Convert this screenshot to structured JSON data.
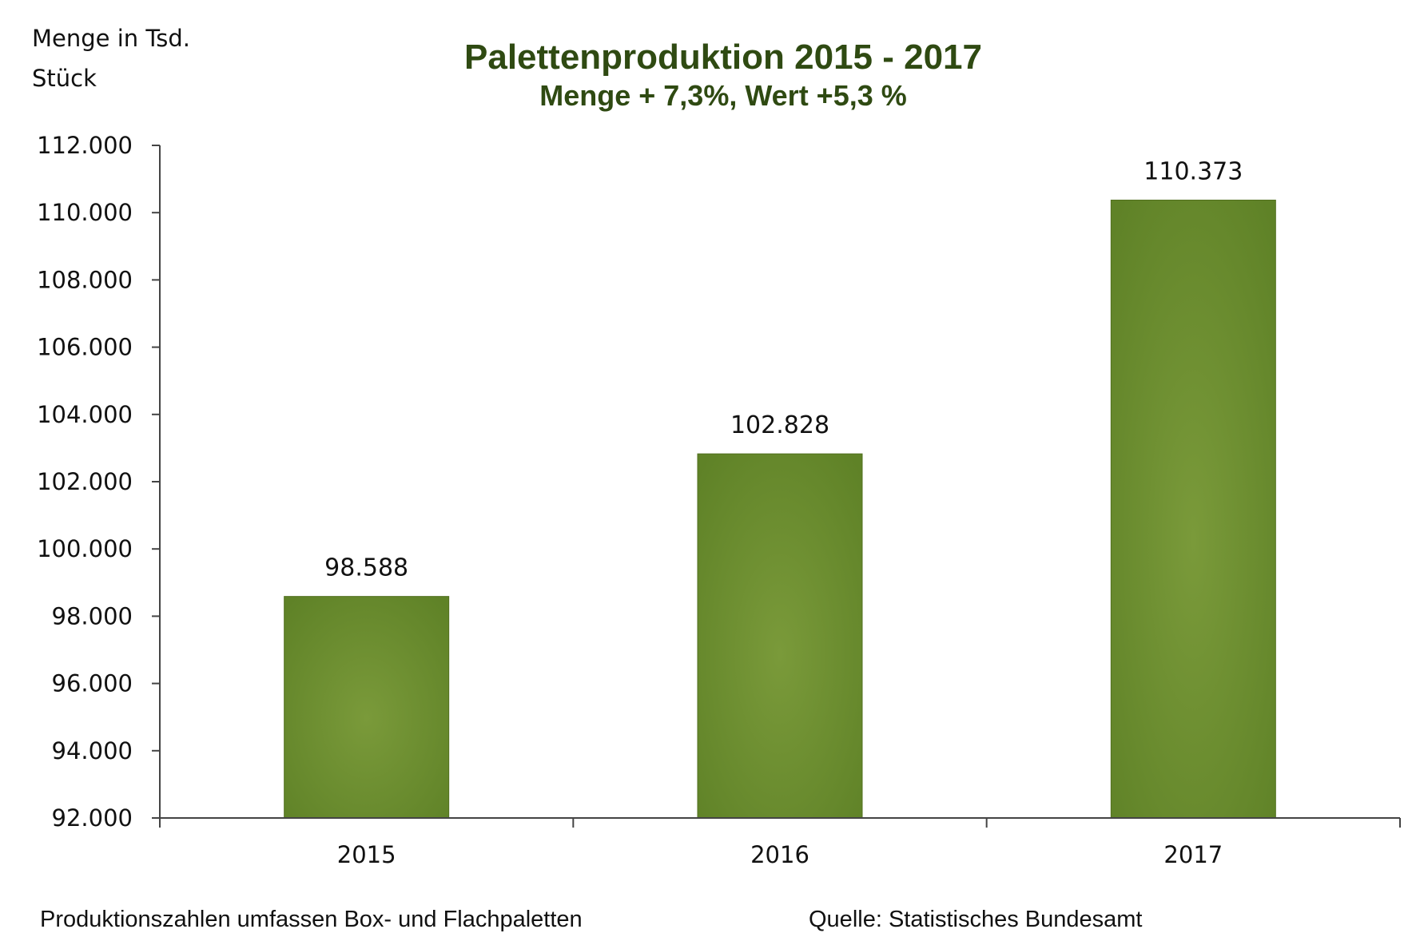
{
  "chart_data": {
    "type": "bar",
    "title": "Palettenproduktion  2015 - 2017",
    "subtitle": "Menge + 7,3%, Wert +5,3 %",
    "ylabel_lines": [
      "Menge in Tsd.",
      "Stück"
    ],
    "categories": [
      "2015",
      "2016",
      "2017"
    ],
    "values": [
      98588,
      102828,
      110373
    ],
    "value_labels": [
      "98.588",
      "102.828",
      "110.373"
    ],
    "ylim": [
      92000,
      112000
    ],
    "yticks": [
      92000,
      94000,
      96000,
      98000,
      100000,
      102000,
      104000,
      106000,
      108000,
      110000,
      112000
    ],
    "ytick_labels": [
      "92.000",
      "94.000",
      "96.000",
      "98.000",
      "100.000",
      "102.000",
      "104.000",
      "106.000",
      "108.000",
      "110.000",
      "112.000"
    ],
    "bar_color": "#6b8e2e",
    "grid": false,
    "footnote_left": "Produktionszahlen  umfassen Box- und Flachpaletten",
    "footnote_right": "Quelle:  Statistisches Bundesamt"
  }
}
